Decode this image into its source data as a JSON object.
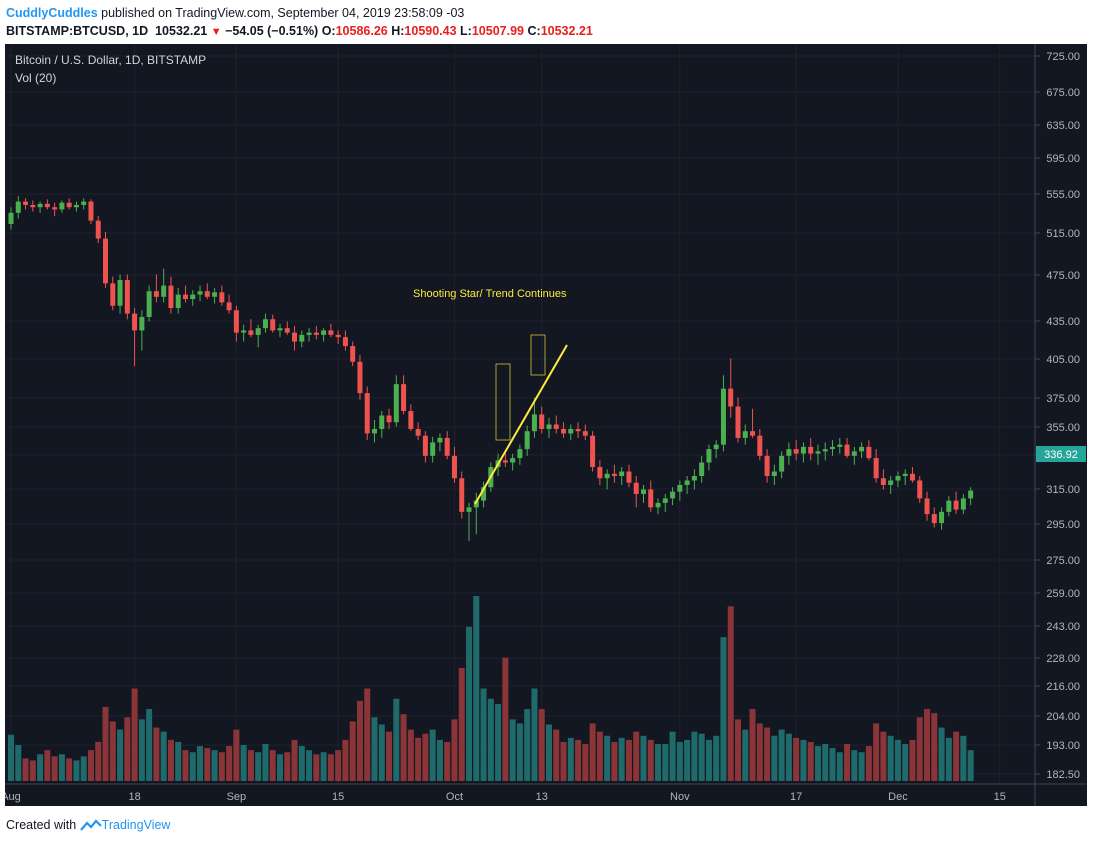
{
  "header": {
    "user": "CuddlyCuddles",
    "published": "published on TradingView.com, September 04, 2019 23:58:09 -03",
    "symbol": "BITSTAMP:BTCUSD, 1D",
    "price": "10532.21",
    "arrow": "▼",
    "change": "−54.05 (−0.51%)",
    "o_label": "O:",
    "o_value": "10586.26",
    "h_label": "H:",
    "h_value": "10590.43",
    "l_label": "L:",
    "l_value": "10507.99",
    "c_label": "C:",
    "c_value": "10532.21"
  },
  "legend": {
    "title": "Bitcoin / U.S. Dollar, 1D, BITSTAMP",
    "volume": "Vol (20)"
  },
  "annotation": {
    "text": "Shooting Star/ Trend Continues"
  },
  "footer": {
    "created": "Created with",
    "brand": "TradingView"
  },
  "colors": {
    "background": "#131722",
    "up": "#4caf50",
    "down": "#ef5350",
    "up_volume": "#1f6b6b",
    "down_volume": "#8b3538",
    "annotation": "#ffeb3b",
    "axis_text": "#b2b5be",
    "last_price_bg": "#26a69a"
  },
  "chart_data": {
    "type": "candlestick",
    "title": "Bitcoin / U.S. Dollar, 1D, BITSTAMP",
    "y_ticks": [
      "725.00",
      "675.00",
      "635.00",
      "595.00",
      "555.00",
      "515.00",
      "475.00",
      "435.00",
      "405.00",
      "375.00",
      "355.00",
      "335.00",
      "315.00",
      "295.00",
      "275.00",
      "259.00",
      "243.00",
      "228.00",
      "216.00",
      "204.00",
      "193.00",
      "182.50"
    ],
    "x_ticks": [
      {
        "label": "Aug",
        "index": 0
      },
      {
        "label": "18",
        "index": 17
      },
      {
        "label": "Sep",
        "index": 31
      },
      {
        "label": "15",
        "index": 45
      },
      {
        "label": "Oct",
        "index": 61
      },
      {
        "label": "13",
        "index": 73
      },
      {
        "label": "Nov",
        "index": 92
      },
      {
        "label": "17",
        "index": 108
      },
      {
        "label": "Dec",
        "index": 122
      },
      {
        "label": "15",
        "index": 136
      }
    ],
    "last_price": "336.92",
    "annotation_label": "Shooting Star/ Trend Continues",
    "candles": [
      [
        575,
        590,
        570,
        585,
        45
      ],
      [
        585,
        600,
        580,
        595,
        35
      ],
      [
        595,
        598,
        588,
        592,
        22
      ],
      [
        592,
        596,
        586,
        590,
        20
      ],
      [
        590,
        595,
        585,
        593,
        26
      ],
      [
        593,
        597,
        588,
        590,
        30
      ],
      [
        590,
        594,
        582,
        588,
        24
      ],
      [
        588,
        596,
        585,
        594,
        26
      ],
      [
        594,
        598,
        588,
        590,
        22
      ],
      [
        590,
        595,
        586,
        592,
        20
      ],
      [
        592,
        598,
        588,
        595,
        24
      ],
      [
        595,
        597,
        575,
        578,
        30
      ],
      [
        578,
        582,
        558,
        562,
        38
      ],
      [
        562,
        568,
        518,
        522,
        72
      ],
      [
        522,
        528,
        498,
        502,
        58
      ],
      [
        502,
        530,
        495,
        525,
        50
      ],
      [
        525,
        530,
        490,
        495,
        62
      ],
      [
        495,
        500,
        448,
        480,
        90
      ],
      [
        480,
        498,
        462,
        492,
        60
      ],
      [
        492,
        520,
        488,
        515,
        70
      ],
      [
        515,
        530,
        505,
        510,
        52
      ],
      [
        510,
        535,
        505,
        520,
        48
      ],
      [
        520,
        528,
        495,
        500,
        40
      ],
      [
        500,
        518,
        495,
        512,
        38
      ],
      [
        512,
        520,
        505,
        508,
        30
      ],
      [
        508,
        516,
        502,
        512,
        28
      ],
      [
        512,
        520,
        506,
        515,
        34
      ],
      [
        515,
        522,
        508,
        510,
        32
      ],
      [
        510,
        518,
        504,
        514,
        30
      ],
      [
        514,
        520,
        502,
        505,
        28
      ],
      [
        505,
        512,
        495,
        498,
        34
      ],
      [
        498,
        502,
        470,
        478,
        50
      ],
      [
        478,
        485,
        470,
        480,
        35
      ],
      [
        480,
        490,
        474,
        476,
        30
      ],
      [
        476,
        485,
        465,
        482,
        28
      ],
      [
        482,
        495,
        478,
        490,
        36
      ],
      [
        490,
        494,
        478,
        480,
        30
      ],
      [
        480,
        486,
        474,
        482,
        26
      ],
      [
        482,
        488,
        476,
        478,
        28
      ],
      [
        478,
        484,
        462,
        470,
        40
      ],
      [
        470,
        480,
        465,
        476,
        34
      ],
      [
        476,
        482,
        470,
        478,
        30
      ],
      [
        478,
        484,
        472,
        476,
        26
      ],
      [
        476,
        482,
        470,
        480,
        28
      ],
      [
        480,
        486,
        474,
        476,
        26
      ],
      [
        476,
        480,
        468,
        474,
        30
      ],
      [
        474,
        480,
        462,
        466,
        40
      ],
      [
        466,
        470,
        448,
        452,
        58
      ],
      [
        452,
        458,
        418,
        424,
        78
      ],
      [
        424,
        430,
        382,
        388,
        90
      ],
      [
        388,
        400,
        380,
        392,
        62
      ],
      [
        392,
        408,
        384,
        404,
        55
      ],
      [
        404,
        410,
        392,
        398,
        48
      ],
      [
        398,
        440,
        394,
        432,
        80
      ],
      [
        432,
        440,
        405,
        408,
        65
      ],
      [
        408,
        414,
        390,
        392,
        50
      ],
      [
        392,
        398,
        382,
        386,
        42
      ],
      [
        386,
        390,
        362,
        368,
        46
      ],
      [
        368,
        385,
        362,
        380,
        50
      ],
      [
        380,
        388,
        372,
        384,
        40
      ],
      [
        384,
        390,
        365,
        368,
        38
      ],
      [
        368,
        376,
        344,
        348,
        60
      ],
      [
        348,
        354,
        312,
        318,
        110
      ],
      [
        318,
        326,
        292,
        322,
        150
      ],
      [
        322,
        335,
        298,
        328,
        180
      ],
      [
        328,
        345,
        322,
        340,
        90
      ],
      [
        340,
        362,
        336,
        358,
        80
      ],
      [
        358,
        370,
        350,
        364,
        75
      ],
      [
        364,
        372,
        358,
        362,
        120
      ],
      [
        362,
        370,
        355,
        366,
        60
      ],
      [
        366,
        378,
        360,
        374,
        56
      ],
      [
        374,
        395,
        368,
        390,
        70
      ],
      [
        390,
        420,
        384,
        405,
        90
      ],
      [
        405,
        412,
        388,
        392,
        70
      ],
      [
        392,
        402,
        384,
        396,
        55
      ],
      [
        396,
        404,
        388,
        392,
        50
      ],
      [
        392,
        398,
        384,
        388,
        38
      ],
      [
        388,
        396,
        382,
        392,
        42
      ],
      [
        392,
        398,
        384,
        390,
        40
      ],
      [
        390,
        396,
        382,
        386,
        36
      ],
      [
        386,
        390,
        354,
        358,
        56
      ],
      [
        358,
        364,
        342,
        348,
        48
      ],
      [
        348,
        356,
        338,
        352,
        44
      ],
      [
        352,
        360,
        344,
        350,
        38
      ],
      [
        350,
        358,
        342,
        354,
        42
      ],
      [
        354,
        360,
        340,
        344,
        40
      ],
      [
        344,
        350,
        322,
        334,
        48
      ],
      [
        334,
        342,
        326,
        338,
        44
      ],
      [
        338,
        346,
        318,
        322,
        40
      ],
      [
        322,
        330,
        316,
        326,
        36
      ],
      [
        326,
        334,
        318,
        330,
        36
      ],
      [
        330,
        340,
        324,
        336,
        48
      ],
      [
        336,
        346,
        328,
        342,
        38
      ],
      [
        342,
        350,
        334,
        346,
        40
      ],
      [
        346,
        356,
        338,
        350,
        48
      ],
      [
        350,
        368,
        344,
        362,
        46
      ],
      [
        362,
        378,
        355,
        374,
        40
      ],
      [
        374,
        382,
        366,
        378,
        44
      ],
      [
        378,
        440,
        372,
        428,
        140
      ],
      [
        428,
        455,
        402,
        412,
        170
      ],
      [
        412,
        420,
        380,
        384,
        60
      ],
      [
        384,
        396,
        378,
        390,
        50
      ],
      [
        390,
        410,
        384,
        386,
        70
      ],
      [
        386,
        392,
        364,
        368,
        56
      ],
      [
        368,
        374,
        344,
        350,
        52
      ],
      [
        350,
        360,
        342,
        354,
        44
      ],
      [
        354,
        372,
        348,
        368,
        50
      ],
      [
        368,
        380,
        360,
        374,
        46
      ],
      [
        374,
        382,
        364,
        370,
        42
      ],
      [
        370,
        380,
        362,
        376,
        40
      ],
      [
        376,
        384,
        364,
        370,
        38
      ],
      [
        370,
        378,
        360,
        372,
        34
      ],
      [
        372,
        380,
        364,
        374,
        36
      ],
      [
        374,
        382,
        368,
        376,
        32
      ],
      [
        376,
        384,
        370,
        378,
        28
      ],
      [
        378,
        384,
        366,
        368,
        36
      ],
      [
        368,
        376,
        360,
        372,
        30
      ],
      [
        372,
        380,
        366,
        376,
        28
      ],
      [
        376,
        382,
        364,
        366,
        34
      ],
      [
        366,
        374,
        344,
        348,
        56
      ],
      [
        348,
        356,
        338,
        342,
        48
      ],
      [
        342,
        350,
        334,
        346,
        44
      ],
      [
        346,
        354,
        340,
        350,
        40
      ],
      [
        350,
        356,
        342,
        352,
        36
      ],
      [
        352,
        358,
        344,
        346,
        40
      ],
      [
        346,
        350,
        326,
        330,
        62
      ],
      [
        330,
        336,
        310,
        316,
        70
      ],
      [
        316,
        322,
        304,
        308,
        66
      ],
      [
        308,
        322,
        302,
        318,
        52
      ],
      [
        318,
        332,
        314,
        328,
        42
      ],
      [
        328,
        336,
        316,
        320,
        48
      ],
      [
        320,
        334,
        316,
        330,
        44
      ],
      [
        330,
        340,
        324,
        337,
        30
      ]
    ]
  }
}
